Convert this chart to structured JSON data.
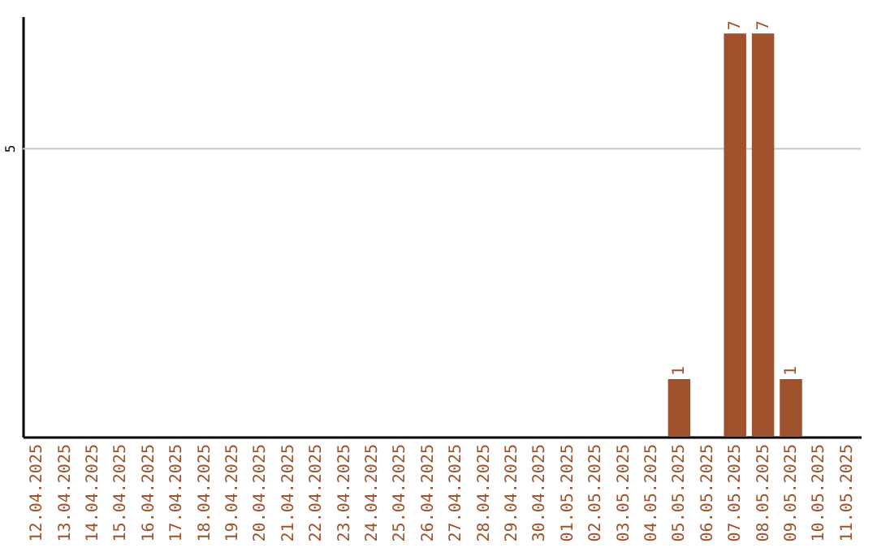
{
  "chart_data": {
    "type": "bar",
    "categories": [
      "12.04.2025",
      "13.04.2025",
      "14.04.2025",
      "15.04.2025",
      "16.04.2025",
      "17.04.2025",
      "18.04.2025",
      "19.04.2025",
      "20.04.2025",
      "21.04.2025",
      "22.04.2025",
      "23.04.2025",
      "24.04.2025",
      "25.04.2025",
      "26.04.2025",
      "27.04.2025",
      "28.04.2025",
      "29.04.2025",
      "30.04.2025",
      "01.05.2025",
      "02.05.2025",
      "03.05.2025",
      "04.05.2025",
      "05.05.2025",
      "06.05.2025",
      "07.05.2025",
      "08.05.2025",
      "09.05.2025",
      "10.05.2025",
      "11.05.2025"
    ],
    "values": [
      null,
      null,
      null,
      null,
      null,
      null,
      null,
      null,
      null,
      null,
      null,
      null,
      null,
      null,
      null,
      null,
      null,
      null,
      null,
      null,
      null,
      null,
      null,
      1,
      null,
      7,
      7,
      1,
      null,
      null
    ],
    "data_labels": true,
    "color": "#a0522d",
    "ylim": [
      0,
      7.3
    ],
    "tick_labels": "x",
    "ref_lines": [
      {
        "axis": "y",
        "value": 5,
        "label": "5",
        "color": "#c8c8c8"
      }
    ]
  }
}
